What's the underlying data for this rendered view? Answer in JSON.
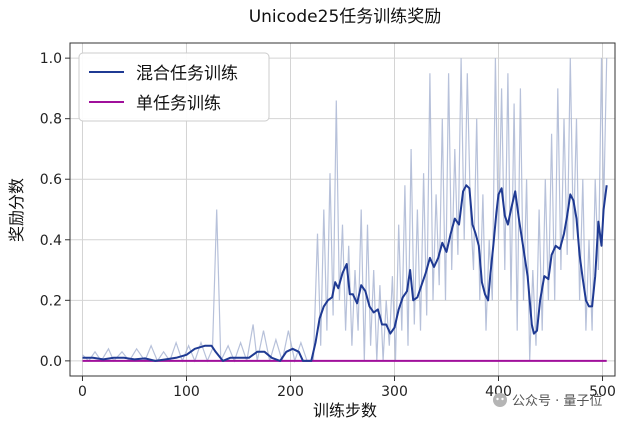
{
  "chart_data": {
    "type": "line",
    "title": "Unicode25任务训练奖励",
    "xlabel": "训练步数",
    "ylabel": "奖励分数",
    "xlim": [
      -12,
      512
    ],
    "ylim": [
      -0.05,
      1.05
    ],
    "x_ticks": [
      0,
      100,
      200,
      300,
      400,
      500
    ],
    "y_ticks": [
      0.0,
      0.2,
      0.4,
      0.6,
      0.8,
      1.0
    ],
    "x_tick_labels": [
      "0",
      "100",
      "200",
      "300",
      "400",
      "500"
    ],
    "y_tick_labels": [
      "0.0",
      "0.2",
      "0.4",
      "0.6",
      "0.8",
      "1.0"
    ],
    "grid": true,
    "legend_position": "top-left",
    "series": [
      {
        "name": "混合任务训练",
        "color": "#1f3a93",
        "raw_color": "#aab6d4",
        "points": [
          [
            0,
            0.01
          ],
          [
            10,
            0.01
          ],
          [
            20,
            0.005
          ],
          [
            30,
            0.01
          ],
          [
            40,
            0.01
          ],
          [
            50,
            0.005
          ],
          [
            60,
            0.008
          ],
          [
            70,
            0.0
          ],
          [
            80,
            0.005
          ],
          [
            90,
            0.01
          ],
          [
            100,
            0.02
          ],
          [
            108,
            0.04
          ],
          [
            118,
            0.05
          ],
          [
            124,
            0.05
          ],
          [
            128,
            0.03
          ],
          [
            135,
            0.0
          ],
          [
            142,
            0.01
          ],
          [
            150,
            0.01
          ],
          [
            160,
            0.01
          ],
          [
            168,
            0.03
          ],
          [
            175,
            0.03
          ],
          [
            182,
            0.01
          ],
          [
            190,
            0.0
          ],
          [
            196,
            0.03
          ],
          [
            202,
            0.04
          ],
          [
            208,
            0.03
          ],
          [
            212,
            0.0
          ],
          [
            220,
            0.0
          ],
          [
            224,
            0.06
          ],
          [
            228,
            0.14
          ],
          [
            232,
            0.18
          ],
          [
            236,
            0.2
          ],
          [
            240,
            0.21
          ],
          [
            243,
            0.26
          ],
          [
            246,
            0.24
          ],
          [
            250,
            0.29
          ],
          [
            254,
            0.32
          ],
          [
            257,
            0.22
          ],
          [
            260,
            0.22
          ],
          [
            264,
            0.19
          ],
          [
            268,
            0.25
          ],
          [
            272,
            0.23
          ],
          [
            276,
            0.18
          ],
          [
            280,
            0.16
          ],
          [
            284,
            0.17
          ],
          [
            288,
            0.12
          ],
          [
            292,
            0.12
          ],
          [
            296,
            0.09
          ],
          [
            300,
            0.11
          ],
          [
            304,
            0.17
          ],
          [
            308,
            0.21
          ],
          [
            312,
            0.23
          ],
          [
            315,
            0.3
          ],
          [
            318,
            0.2
          ],
          [
            322,
            0.21
          ],
          [
            326,
            0.25
          ],
          [
            330,
            0.29
          ],
          [
            334,
            0.34
          ],
          [
            338,
            0.31
          ],
          [
            342,
            0.34
          ],
          [
            346,
            0.39
          ],
          [
            350,
            0.36
          ],
          [
            354,
            0.42
          ],
          [
            358,
            0.47
          ],
          [
            362,
            0.45
          ],
          [
            366,
            0.56
          ],
          [
            369,
            0.58
          ],
          [
            372,
            0.57
          ],
          [
            375,
            0.45
          ],
          [
            378,
            0.42
          ],
          [
            381,
            0.38
          ],
          [
            384,
            0.26
          ],
          [
            387,
            0.22
          ],
          [
            390,
            0.2
          ],
          [
            392,
            0.28
          ],
          [
            395,
            0.38
          ],
          [
            398,
            0.49
          ],
          [
            400,
            0.55
          ],
          [
            403,
            0.57
          ],
          [
            406,
            0.48
          ],
          [
            409,
            0.45
          ],
          [
            412,
            0.5
          ],
          [
            416,
            0.56
          ],
          [
            420,
            0.46
          ],
          [
            424,
            0.37
          ],
          [
            428,
            0.28
          ],
          [
            432,
            0.12
          ],
          [
            434,
            0.09
          ],
          [
            437,
            0.1
          ],
          [
            440,
            0.2
          ],
          [
            444,
            0.28
          ],
          [
            448,
            0.27
          ],
          [
            451,
            0.35
          ],
          [
            455,
            0.38
          ],
          [
            459,
            0.37
          ],
          [
            463,
            0.42
          ],
          [
            466,
            0.48
          ],
          [
            469,
            0.55
          ],
          [
            472,
            0.53
          ],
          [
            475,
            0.47
          ],
          [
            478,
            0.35
          ],
          [
            481,
            0.27
          ],
          [
            484,
            0.2
          ],
          [
            487,
            0.18
          ],
          [
            490,
            0.18
          ],
          [
            493,
            0.28
          ],
          [
            496,
            0.46
          ],
          [
            499,
            0.38
          ],
          [
            501,
            0.5
          ],
          [
            504,
            0.58
          ]
        ],
        "raw_points": [
          [
            0,
            0.02
          ],
          [
            6,
            0.0
          ],
          [
            12,
            0.03
          ],
          [
            18,
            0.0
          ],
          [
            25,
            0.04
          ],
          [
            30,
            0.0
          ],
          [
            38,
            0.03
          ],
          [
            45,
            0.0
          ],
          [
            52,
            0.04
          ],
          [
            60,
            0.0
          ],
          [
            66,
            0.05
          ],
          [
            72,
            0.0
          ],
          [
            78,
            0.03
          ],
          [
            84,
            0.0
          ],
          [
            90,
            0.06
          ],
          [
            96,
            0.0
          ],
          [
            102,
            0.05
          ],
          [
            108,
            0.0
          ],
          [
            114,
            0.06
          ],
          [
            120,
            0.0
          ],
          [
            125,
            0.04
          ],
          [
            129,
            0.5
          ],
          [
            133,
            0.0
          ],
          [
            140,
            0.05
          ],
          [
            146,
            0.0
          ],
          [
            152,
            0.06
          ],
          [
            158,
            0.0
          ],
          [
            164,
            0.12
          ],
          [
            168,
            0.0
          ],
          [
            174,
            0.1
          ],
          [
            180,
            0.0
          ],
          [
            186,
            0.07
          ],
          [
            192,
            0.0
          ],
          [
            198,
            0.1
          ],
          [
            204,
            0.0
          ],
          [
            210,
            0.06
          ],
          [
            216,
            0.0
          ],
          [
            222,
            0.0
          ],
          [
            226,
            0.42
          ],
          [
            229,
            0.05
          ],
          [
            232,
            0.5
          ],
          [
            235,
            0.1
          ],
          [
            238,
            0.62
          ],
          [
            241,
            0.15
          ],
          [
            244,
            0.86
          ],
          [
            247,
            0.2
          ],
          [
            250,
            0.45
          ],
          [
            253,
            0.1
          ],
          [
            256,
            0.38
          ],
          [
            259,
            0.05
          ],
          [
            262,
            0.3
          ],
          [
            265,
            0.1
          ],
          [
            268,
            0.5
          ],
          [
            271,
            0.0
          ],
          [
            274,
            0.45
          ],
          [
            277,
            0.05
          ],
          [
            280,
            0.3
          ],
          [
            283,
            0.0
          ],
          [
            286,
            0.25
          ],
          [
            289,
            0.0
          ],
          [
            292,
            0.2
          ],
          [
            295,
            0.05
          ],
          [
            298,
            0.28
          ],
          [
            301,
            0.0
          ],
          [
            304,
            0.45
          ],
          [
            307,
            0.1
          ],
          [
            310,
            0.58
          ],
          [
            313,
            0.05
          ],
          [
            316,
            0.7
          ],
          [
            319,
            0.12
          ],
          [
            322,
            0.5
          ],
          [
            325,
            0.1
          ],
          [
            328,
            0.62
          ],
          [
            331,
            0.15
          ],
          [
            334,
            0.95
          ],
          [
            337,
            0.2
          ],
          [
            340,
            0.55
          ],
          [
            343,
            0.25
          ],
          [
            346,
            0.8
          ],
          [
            349,
            0.2
          ],
          [
            352,
            0.95
          ],
          [
            355,
            0.3
          ],
          [
            358,
            0.7
          ],
          [
            361,
            0.35
          ],
          [
            364,
            1.0
          ],
          [
            367,
            0.4
          ],
          [
            370,
            0.95
          ],
          [
            373,
            0.5
          ],
          [
            376,
            0.3
          ],
          [
            379,
            0.8
          ],
          [
            382,
            0.2
          ],
          [
            385,
            0.55
          ],
          [
            388,
            0.1
          ],
          [
            391,
            0.4
          ],
          [
            394,
            0.2
          ],
          [
            397,
            1.0
          ],
          [
            400,
            0.4
          ],
          [
            403,
            0.9
          ],
          [
            406,
            0.3
          ],
          [
            409,
            0.95
          ],
          [
            412,
            0.2
          ],
          [
            415,
            0.85
          ],
          [
            418,
            0.1
          ],
          [
            421,
            0.9
          ],
          [
            424,
            0.2
          ],
          [
            427,
            0.6
          ],
          [
            430,
            0.0
          ],
          [
            433,
            0.3
          ],
          [
            436,
            0.05
          ],
          [
            439,
            0.5
          ],
          [
            442,
            0.1
          ],
          [
            445,
            0.6
          ],
          [
            448,
            0.2
          ],
          [
            451,
            0.75
          ],
          [
            454,
            0.2
          ],
          [
            457,
            0.9
          ],
          [
            460,
            0.3
          ],
          [
            463,
            0.8
          ],
          [
            466,
            0.35
          ],
          [
            469,
            1.0
          ],
          [
            472,
            0.4
          ],
          [
            475,
            0.8
          ],
          [
            478,
            0.2
          ],
          [
            481,
            0.6
          ],
          [
            484,
            0.1
          ],
          [
            487,
            0.4
          ],
          [
            490,
            0.1
          ],
          [
            493,
            0.6
          ],
          [
            496,
            0.3
          ],
          [
            499,
            1.0
          ],
          [
            501,
            0.5
          ],
          [
            504,
            1.0
          ]
        ]
      },
      {
        "name": "单任务训练",
        "color": "#a0109b",
        "points": [
          [
            0,
            0.0
          ],
          [
            504,
            0.0
          ]
        ]
      }
    ]
  },
  "watermark": {
    "text": "公众号 · 量子位"
  }
}
